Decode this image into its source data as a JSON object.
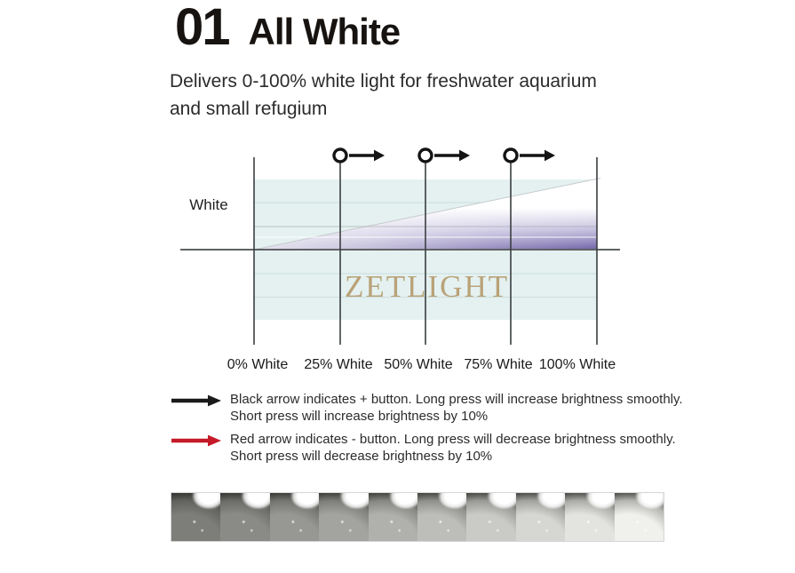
{
  "header": {
    "section_number": "01",
    "section_title": "All White"
  },
  "description": {
    "line1": "Delivers 0-100% white light for freshwater aquarium",
    "line2": "and small refugium"
  },
  "chart": {
    "type": "brightness-ramp-diagram",
    "y_axis_label": "White",
    "watermark": "ZETLIGHT",
    "x_labels": [
      "0% White",
      "25% White",
      "50% White",
      "75% White",
      "100% White"
    ],
    "markers": {
      "symbol": "circle-with-right-arrow",
      "at_labels": [
        "25% White",
        "50% White",
        "75% White"
      ]
    },
    "ramp": {
      "start_percent": 0,
      "end_percent": 100
    },
    "colors": {
      "plot_background": "#e4f1f0",
      "ramp_purple": "#6a5ca2",
      "watermark_text": "#b79e72",
      "axis_line": "#5f6365"
    }
  },
  "legend": {
    "items": [
      {
        "arrow_color": "#1a1a1a",
        "line1": "Black arrow indicates + button. Long press will increase brightness smoothly.",
        "line2": "Short press will increase brightness by 10%"
      },
      {
        "arrow_color": "#c51a28",
        "line1": "Red arrow indicates - button. Long press will decrease brightness smoothly.",
        "line2": "Short press will decrease brightness by 10%"
      }
    ]
  },
  "photo_strip": {
    "tile_count": 10
  }
}
